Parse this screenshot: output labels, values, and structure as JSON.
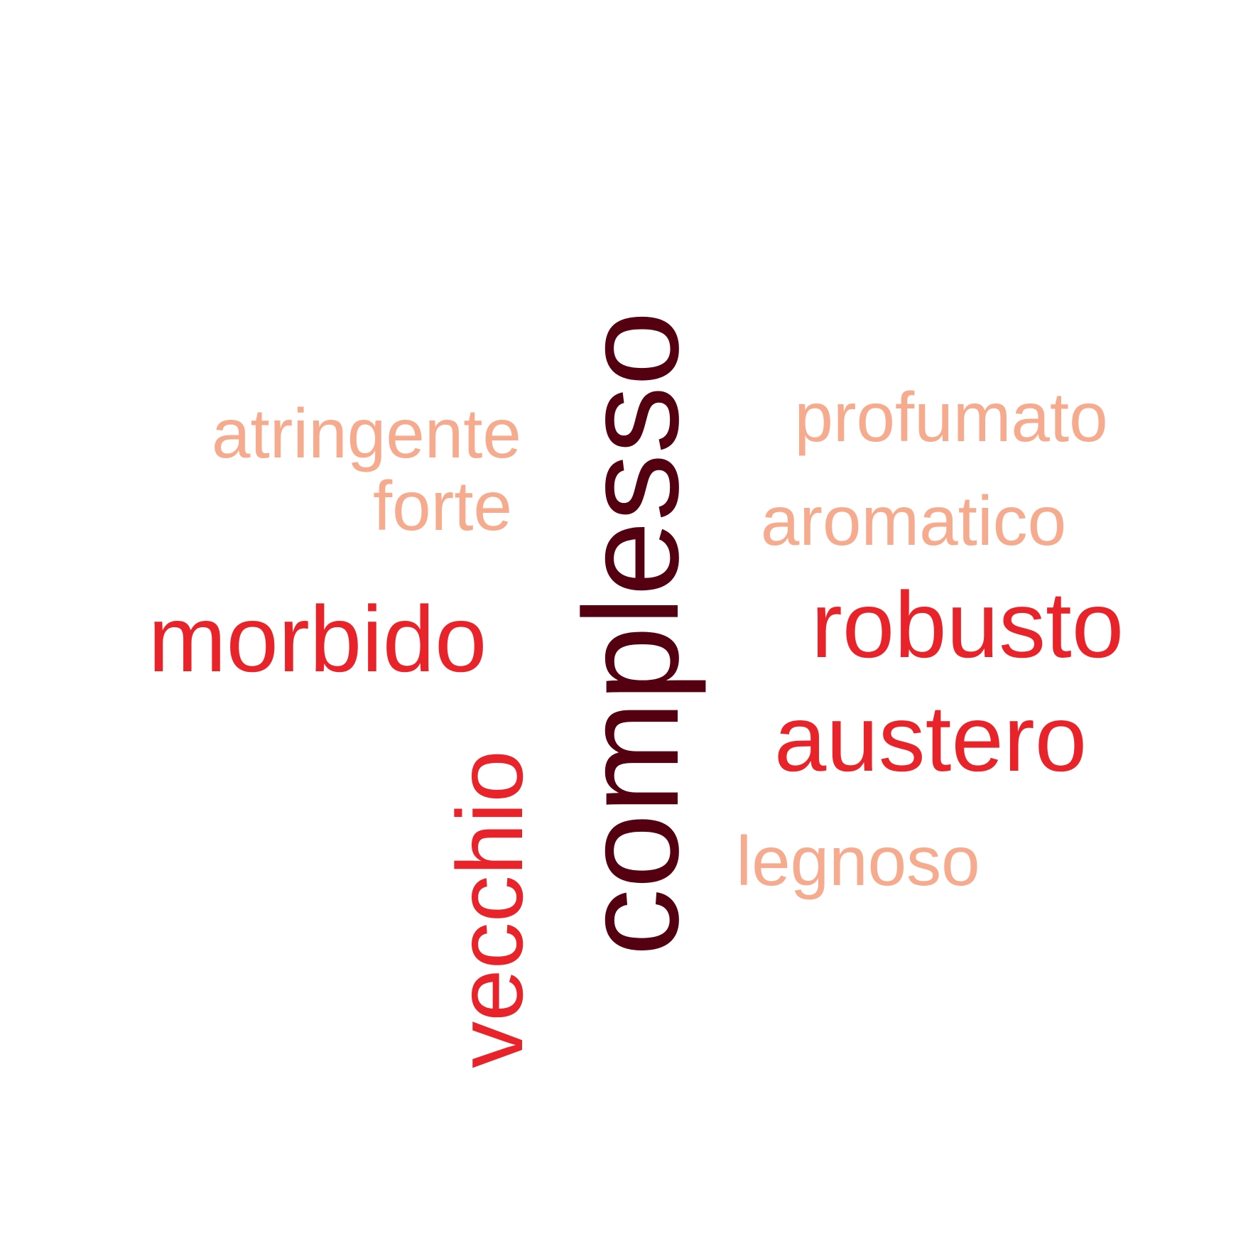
{
  "colors": {
    "background": "#ffffff",
    "dark": "#540011",
    "red": "#e8242a",
    "salmon": "#f6ab8f"
  },
  "words": [
    {
      "id": "complesso",
      "text": "complesso",
      "tier": "t1",
      "orientation": "vertical",
      "color": "#540011"
    },
    {
      "id": "vecchio",
      "text": "vecchio",
      "tier": "t2",
      "orientation": "vertical",
      "color": "#e8242a"
    },
    {
      "id": "morbido",
      "text": "morbido",
      "tier": "t2",
      "orientation": "horizontal",
      "color": "#e8242a"
    },
    {
      "id": "robusto",
      "text": "robusto",
      "tier": "t2",
      "orientation": "horizontal",
      "color": "#e8242a"
    },
    {
      "id": "austero",
      "text": "austero",
      "tier": "t2",
      "orientation": "horizontal",
      "color": "#e8242a"
    },
    {
      "id": "atringente",
      "text": "atringente",
      "tier": "t3",
      "orientation": "horizontal",
      "color": "#f6ab8f"
    },
    {
      "id": "forte",
      "text": "forte",
      "tier": "t3",
      "orientation": "horizontal",
      "color": "#f6ab8f"
    },
    {
      "id": "profumato",
      "text": "profumato",
      "tier": "t3",
      "orientation": "horizontal",
      "color": "#f6ab8f"
    },
    {
      "id": "aromatico",
      "text": "aromatico",
      "tier": "t3",
      "orientation": "horizontal",
      "color": "#f6ab8f"
    },
    {
      "id": "legnoso",
      "text": "legnoso",
      "tier": "t3",
      "orientation": "horizontal",
      "color": "#f6ab8f"
    }
  ]
}
